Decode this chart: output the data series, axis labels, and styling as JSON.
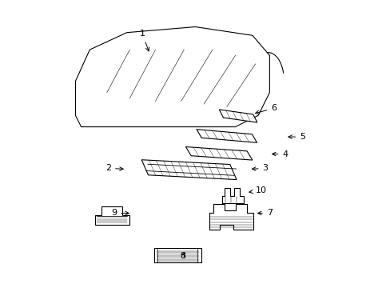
{
  "background_color": "#ffffff",
  "lw": 0.8,
  "lc": "black",
  "label_fontsize": 8,
  "parts_info": [
    [
      1,
      0.315,
      0.885,
      0.34,
      0.815
    ],
    [
      6,
      0.775,
      0.625,
      0.7,
      0.605
    ],
    [
      5,
      0.875,
      0.525,
      0.815,
      0.525
    ],
    [
      4,
      0.815,
      0.465,
      0.758,
      0.465
    ],
    [
      3,
      0.745,
      0.415,
      0.688,
      0.412
    ],
    [
      2,
      0.195,
      0.415,
      0.258,
      0.412
    ],
    [
      10,
      0.73,
      0.338,
      0.678,
      0.33
    ],
    [
      7,
      0.76,
      0.258,
      0.708,
      0.258
    ],
    [
      9,
      0.215,
      0.258,
      0.278,
      0.258
    ],
    [
      8,
      0.455,
      0.108,
      0.468,
      0.128
    ]
  ]
}
